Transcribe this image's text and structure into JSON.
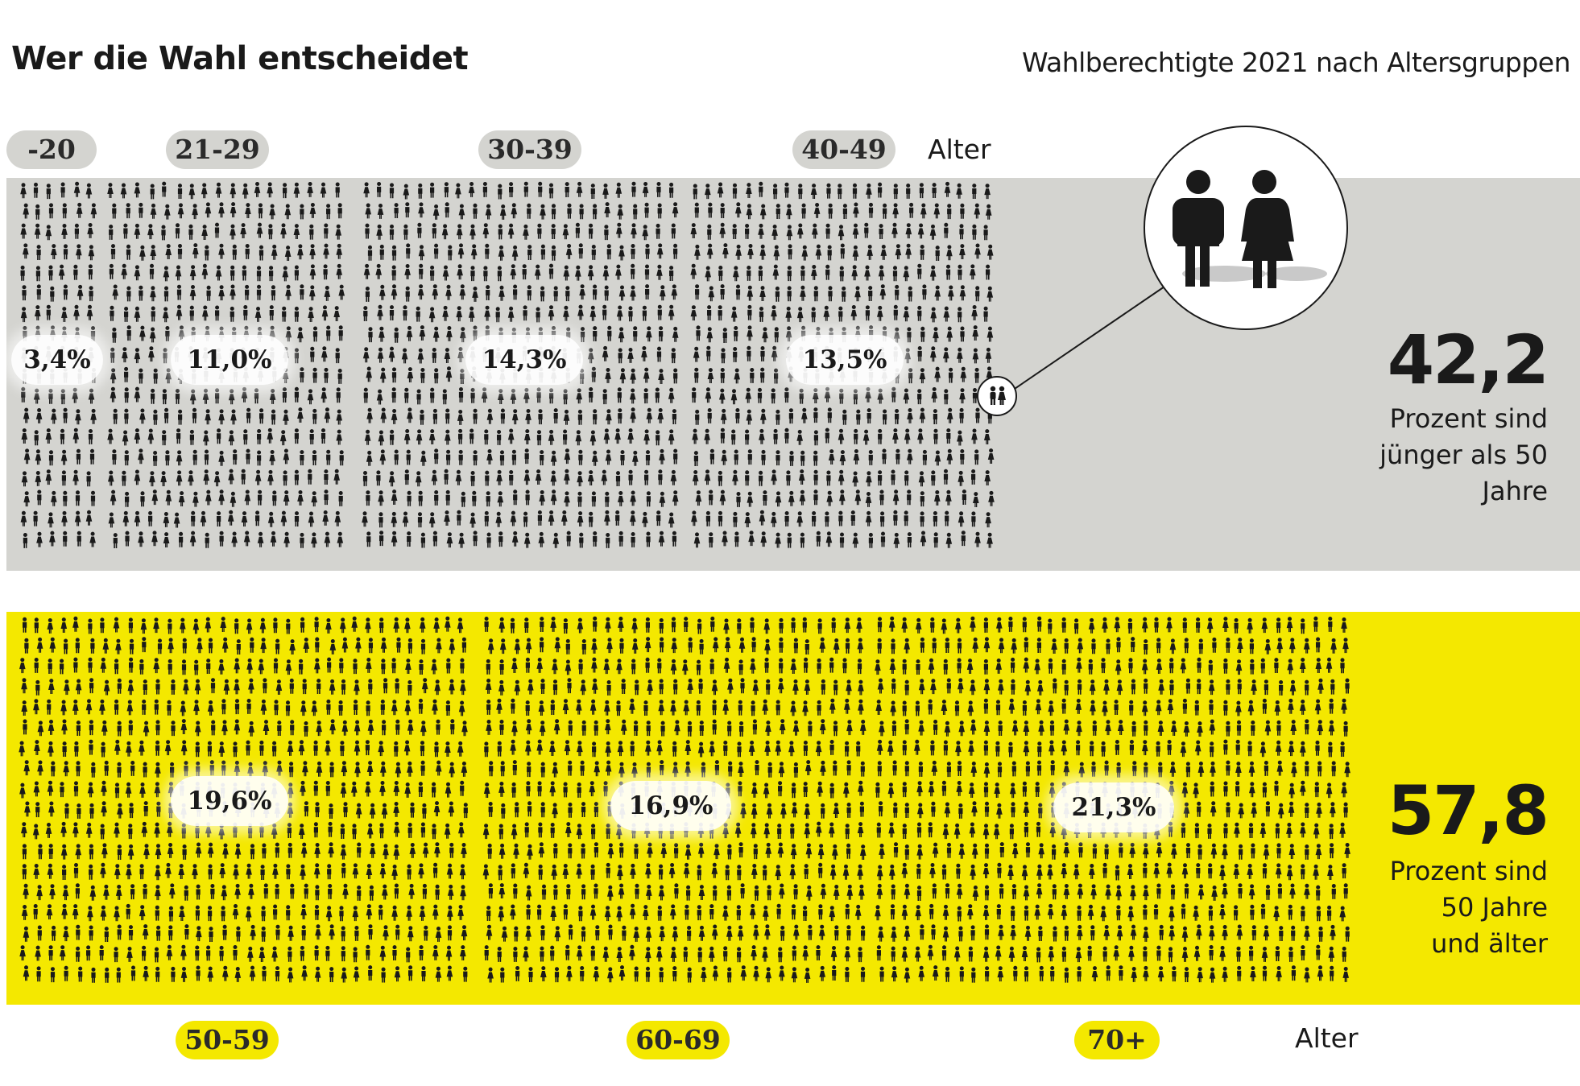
{
  "title": "Wer die Wahl entscheidet",
  "subtitle": "Wahlberechtigte 2021 nach Altersgruppen",
  "alter_label": "Alter",
  "colors": {
    "top_panel": "#d4d4d0",
    "bottom_panel": "#f4e800",
    "figure": "#1a1a1a"
  },
  "icons": [
    "person-figure-icon",
    "man-woman-icon"
  ],
  "chart_data": {
    "type": "pictogram",
    "unit": "%",
    "categories": [
      "-20",
      "21-29",
      "30-39",
      "40-49",
      "50-59",
      "60-69",
      "70+"
    ],
    "values": [
      3.4,
      11.0,
      14.3,
      13.5,
      19.6,
      16.9,
      21.3
    ],
    "value_labels": [
      "3,4%",
      "11,0%",
      "14,3%",
      "13,5%",
      "19,6%",
      "16,9%",
      "21,3%"
    ],
    "groups": [
      {
        "value": 42.2,
        "value_label": "42,2",
        "text": "Prozent sind\njünger als 50\nJahre",
        "categories": [
          "-20",
          "21-29",
          "30-39",
          "40-49"
        ]
      },
      {
        "value": 57.8,
        "value_label": "57,8",
        "text": "Prozent sind\n50 Jahre\nund älter",
        "categories": [
          "50-59",
          "60-69",
          "70+"
        ]
      }
    ]
  }
}
